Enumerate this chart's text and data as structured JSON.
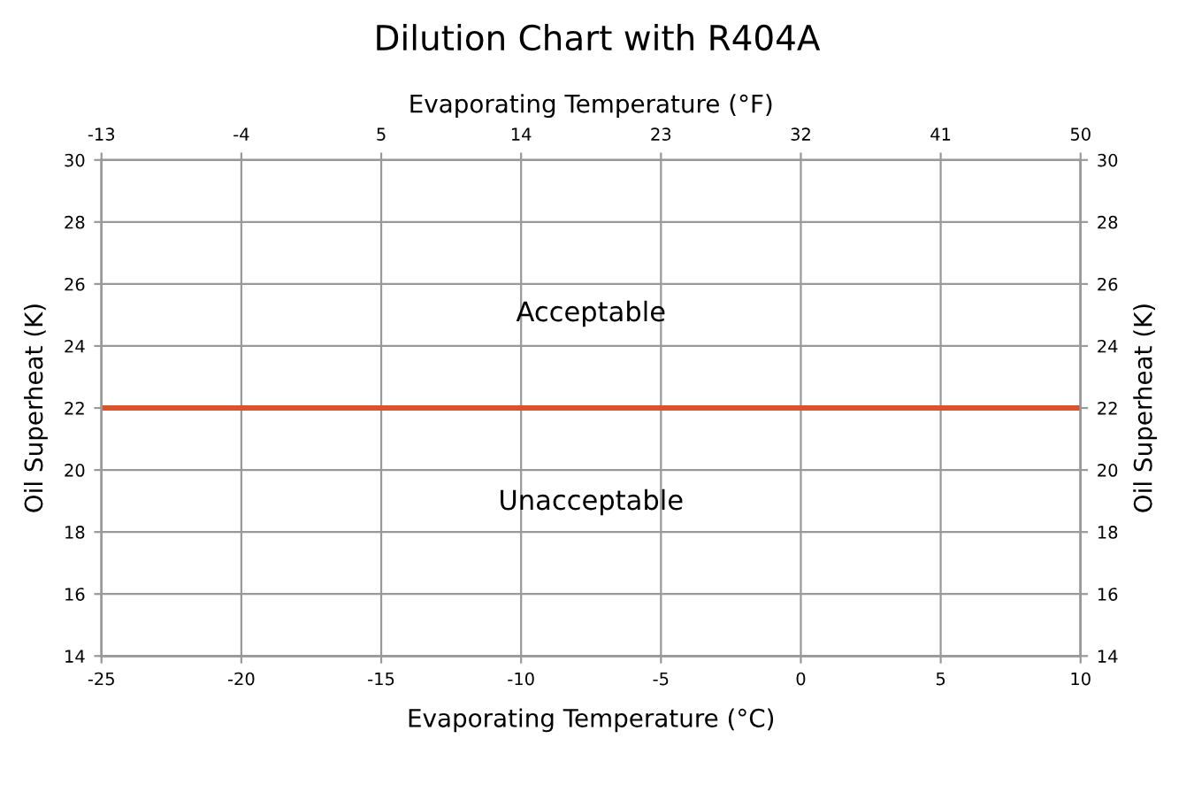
{
  "chart_data": {
    "type": "line",
    "title": "Dilution Chart with R404A",
    "xlabel": "Evaporating Temperature (°C)",
    "x2label": "Evaporating Temperature (°F)",
    "ylabel": "Oil Superheat (K)",
    "y2label": "Oil Superheat (K)",
    "series": [
      {
        "color": "#d9542b",
        "x": [
          -25,
          10
        ],
        "values": [
          22,
          22
        ]
      }
    ],
    "xlim": [
      -25,
      10
    ],
    "xticks": [
      -25,
      -20,
      -15,
      -10,
      -5,
      0,
      5,
      10
    ],
    "x2lim": [
      -13,
      50
    ],
    "x2ticks": [
      -13,
      -4,
      5,
      14,
      23,
      32,
      41,
      50
    ],
    "ylim": [
      14,
      30
    ],
    "yticks": [
      14,
      16,
      18,
      20,
      22,
      24,
      26,
      28,
      30
    ],
    "y2lim": [
      14,
      30
    ],
    "y2ticks": [
      14,
      16,
      18,
      20,
      22,
      24,
      26,
      28,
      30
    ],
    "grid": true,
    "marker": "none",
    "line_style": "solid",
    "annotations": [
      "Acceptable",
      "Unacceptable"
    ]
  }
}
